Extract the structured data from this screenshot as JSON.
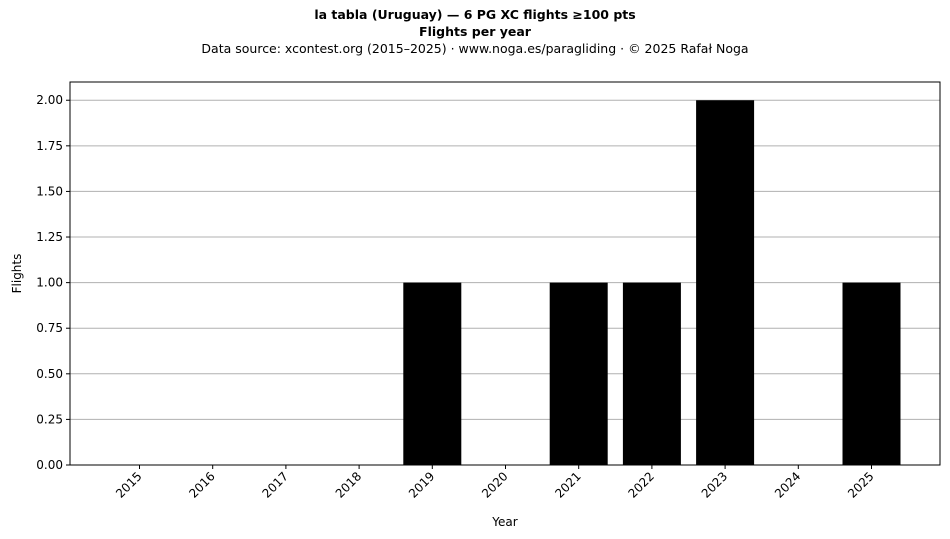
{
  "header": {
    "title": "la tabla (Uruguay)  —  6 PG XC flights ≥100 pts",
    "subtitle": "Flights per year",
    "source": "Data source: xcontest.org (2015–2025)  ·  www.noga.es/paragliding  ·  © 2025 Rafał Noga"
  },
  "chart_data": {
    "type": "bar",
    "title": "la tabla (Uruguay)  —  6 PG XC flights ≥100 pts",
    "subtitle": "Flights per year",
    "xlabel": "Year",
    "ylabel": "Flights",
    "categories": [
      "2015",
      "2016",
      "2017",
      "2018",
      "2019",
      "2020",
      "2021",
      "2022",
      "2023",
      "2024",
      "2025"
    ],
    "values": [
      0,
      0,
      0,
      0,
      1,
      0,
      1,
      1,
      2,
      0,
      1
    ],
    "ylim": [
      0,
      2.1
    ],
    "yticks": [
      "0.00",
      "0.25",
      "0.50",
      "0.75",
      "1.00",
      "1.25",
      "1.50",
      "1.75",
      "2.00"
    ],
    "grid": "y",
    "bar_color": "#000000",
    "grid_color": "#b0b0b0"
  }
}
